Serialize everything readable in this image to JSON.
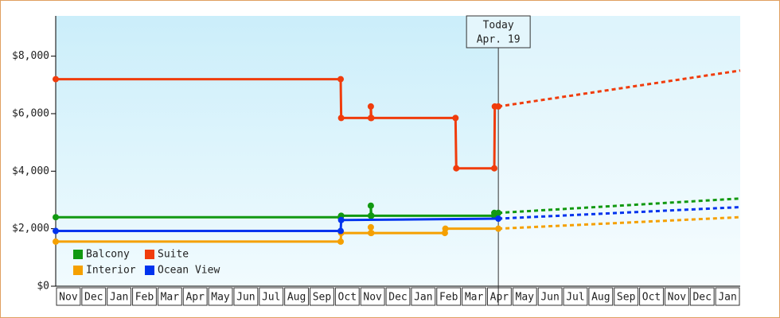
{
  "chart_data": {
    "type": "line",
    "xlim": [
      0,
      27
    ],
    "xticks": [
      {
        "value": 0.5,
        "label": "Nov"
      },
      {
        "value": 1.5,
        "label": "Dec"
      },
      {
        "value": 2.5,
        "label": "Jan"
      },
      {
        "value": 3.5,
        "label": "Feb"
      },
      {
        "value": 4.5,
        "label": "Mar"
      },
      {
        "value": 5.5,
        "label": "Apr"
      },
      {
        "value": 6.5,
        "label": "May"
      },
      {
        "value": 7.5,
        "label": "Jun"
      },
      {
        "value": 8.5,
        "label": "Jul"
      },
      {
        "value": 9.5,
        "label": "Aug"
      },
      {
        "value": 10.5,
        "label": "Sep"
      },
      {
        "value": 11.5,
        "label": "Oct"
      },
      {
        "value": 12.5,
        "label": "Nov"
      },
      {
        "value": 13.5,
        "label": "Dec"
      },
      {
        "value": 14.5,
        "label": "Jan"
      },
      {
        "value": 15.5,
        "label": "Feb"
      },
      {
        "value": 16.5,
        "label": "Mar"
      },
      {
        "value": 17.5,
        "label": "Apr"
      },
      {
        "value": 18.5,
        "label": "May"
      },
      {
        "value": 19.5,
        "label": "Jun"
      },
      {
        "value": 20.5,
        "label": "Jul"
      },
      {
        "value": 21.5,
        "label": "Aug"
      },
      {
        "value": 22.5,
        "label": "Sep"
      },
      {
        "value": 23.5,
        "label": "Oct"
      },
      {
        "value": 24.5,
        "label": "Nov"
      },
      {
        "value": 25.5,
        "label": "Dec"
      },
      {
        "value": 26.5,
        "label": "Jan"
      }
    ],
    "ylim": [
      0,
      9400
    ],
    "yticks": [
      {
        "value": 0,
        "label": "$0"
      },
      {
        "value": 2000,
        "label": "$2,000"
      },
      {
        "value": 4000,
        "label": "$4,000"
      },
      {
        "value": 6000,
        "label": "$6,000"
      },
      {
        "value": 8000,
        "label": "$8,000"
      }
    ],
    "today": {
      "x": 17.46,
      "label": "Today",
      "date": "Apr. 19"
    },
    "legend": "lower left",
    "series": [
      {
        "name": "Balcony",
        "color": "#119911",
        "x": [
          0,
          11.24,
          11.26,
          12.43,
          12.43,
          12.45,
          17.3,
          17.3,
          17.46
        ],
        "values": [
          2400,
          2400,
          2450,
          2450,
          2800,
          2450,
          2450,
          2550,
          2550
        ],
        "forecast_x": [
          17.46,
          27
        ],
        "forecast_values": [
          2550,
          3050
        ]
      },
      {
        "name": "Suite",
        "color": "#f03c0c",
        "x": [
          0,
          11.24,
          11.26,
          12.43,
          12.43,
          12.45,
          15.77,
          15.8,
          17.3,
          17.32,
          17.46
        ],
        "values": [
          7200,
          7200,
          5850,
          5850,
          6250,
          5850,
          5850,
          4100,
          4100,
          6250,
          6250
        ],
        "forecast_x": [
          17.46,
          27
        ],
        "forecast_values": [
          6250,
          7500
        ]
      },
      {
        "name": "Interior",
        "color": "#f5a000",
        "x": [
          0,
          11.24,
          11.26,
          12.43,
          12.43,
          12.45,
          15.35,
          15.37,
          17.46
        ],
        "values": [
          1550,
          1550,
          1850,
          1850,
          2050,
          1850,
          1850,
          2000,
          2000
        ],
        "forecast_x": [
          17.46,
          27
        ],
        "forecast_values": [
          2000,
          2400
        ]
      },
      {
        "name": "Ocean View",
        "color": "#0033ee",
        "x": [
          0,
          11.24,
          11.26,
          17.46
        ],
        "values": [
          1920,
          1920,
          2300,
          2350
        ],
        "forecast_x": [
          17.46,
          27
        ],
        "forecast_values": [
          2350,
          2750
        ]
      }
    ]
  }
}
